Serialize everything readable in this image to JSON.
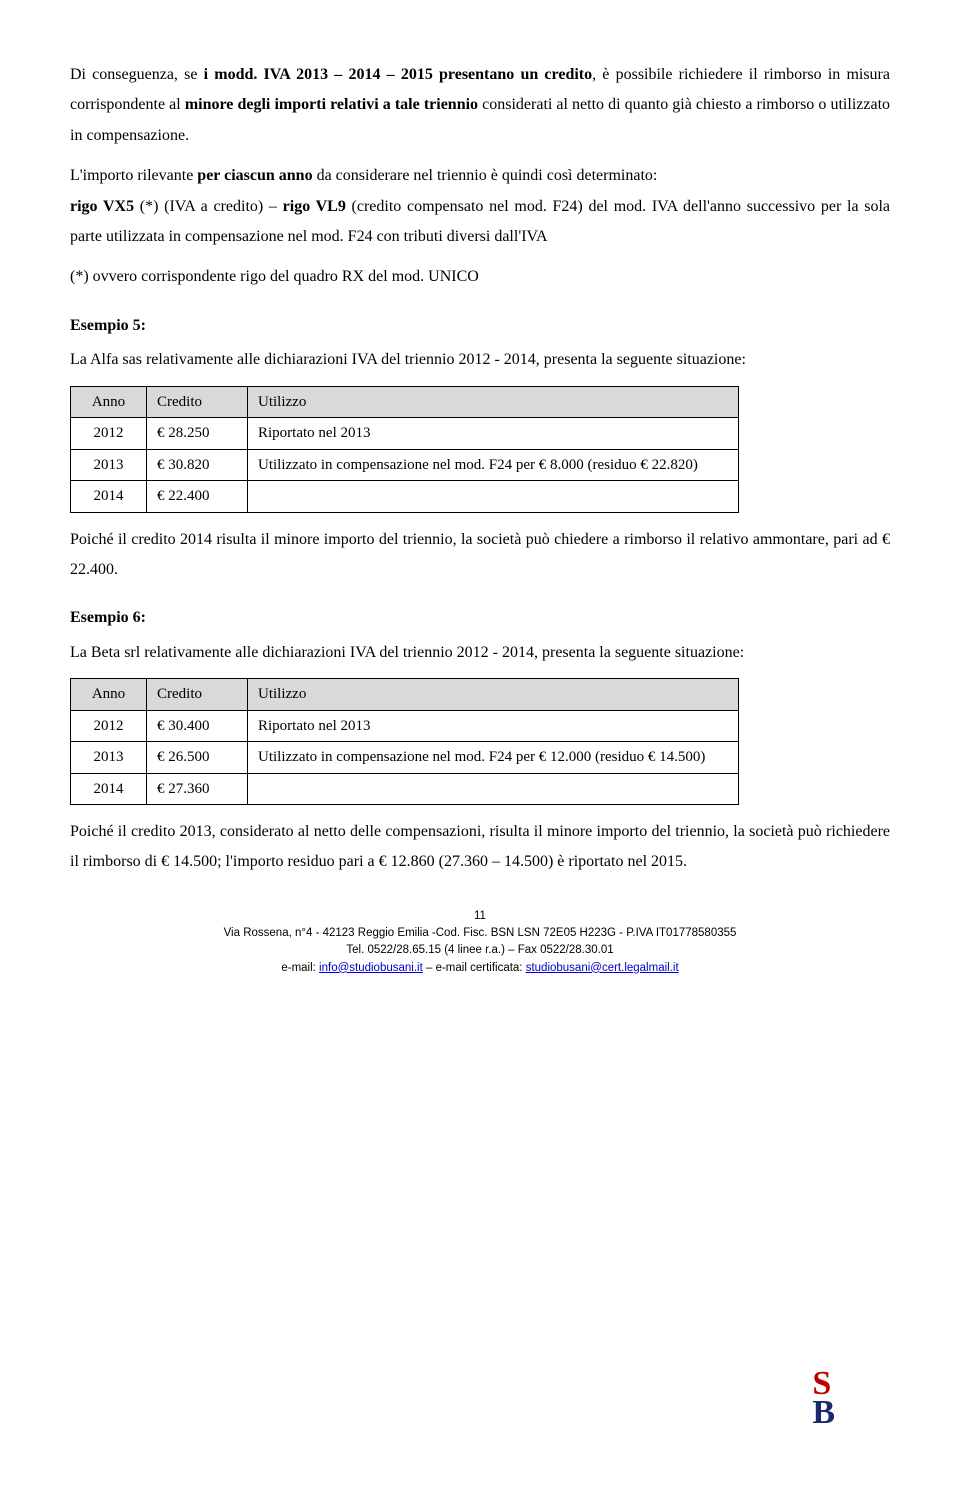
{
  "para1_pre": "Di conseguenza, se ",
  "para1_bold": "i modd. IVA 2013 – 2014 – 2015 presentano un credito",
  "para1_mid1": ", è possibile richiedere il rimborso in misura corrispondente al ",
  "para1_bold2": "minore degli importi relativi a tale triennio",
  "para1_mid2": " considerati al netto di quanto già chiesto a rimborso o utilizzato in compensazione.",
  "para2_pre": "L'importo rilevante ",
  "para2_bold1": "per ciascun anno",
  "para2_mid1": " da considerare nel triennio è quindi così determinato:",
  "para3_bold1": "rigo VX5",
  "para3_mid1": " (*) (IVA a credito) – ",
  "para3_bold2": "rigo VL9",
  "para3_mid2": " (credito compensato nel mod. F24) del mod. IVA dell'anno successivo per la sola parte utilizzata in compensazione nel mod. F24 con tributi diversi dall'IVA",
  "para4": "(*) ovvero corrispondente rigo del quadro RX del mod. UNICO",
  "ex5_title": "Esempio 5:",
  "ex5_intro": "La Alfa sas relativamente alle dichiarazioni IVA del triennio 2012 - 2014, presenta la seguente situazione:",
  "table": {
    "headers": {
      "anno": "Anno",
      "credito": "Credito",
      "utilizzo": "Utilizzo"
    }
  },
  "ex5_rows": [
    {
      "anno": "2012",
      "credito": "€ 28.250",
      "utilizzo": "Riportato nel 2013"
    },
    {
      "anno": "2013",
      "credito": "€ 30.820",
      "utilizzo": "Utilizzato in compensazione nel mod. F24 per € 8.000 (residuo € 22.820)"
    },
    {
      "anno": "2014",
      "credito": "€ 22.400",
      "utilizzo": ""
    }
  ],
  "ex5_after": "Poiché il credito 2014 risulta il minore importo del triennio, la società può chiedere a rimborso il relativo ammontare, pari ad € 22.400.",
  "ex6_title": "Esempio 6:",
  "ex6_intro": "La Beta srl relativamente alle dichiarazioni IVA del triennio 2012 - 2014, presenta la seguente situazione:",
  "ex6_rows": [
    {
      "anno": "2012",
      "credito": "€ 30.400",
      "utilizzo": "Riportato nel 2013"
    },
    {
      "anno": "2013",
      "credito": "€ 26.500",
      "utilizzo": "Utilizzato in compensazione nel mod. F24 per € 12.000 (residuo € 14.500)"
    },
    {
      "anno": "2014",
      "credito": "€ 27.360",
      "utilizzo": ""
    }
  ],
  "ex6_after": "Poiché il credito 2013, considerato al netto delle compensazioni, risulta il minore importo del triennio, la società può richiedere il rimborso di € 14.500; l'importo residuo pari a € 12.860 (27.360 – 14.500) è riportato nel 2015.",
  "footer": {
    "page": "11",
    "line1": "Via Rossena, n°4 - 42123 Reggio Emilia -Cod. Fisc. BSN LSN 72E05 H223G - P.IVA IT01778580355",
    "line2": "Tel. 0522/28.65.15 (4 linee r.a.) – Fax 0522/28.30.01",
    "line3_pre": "e-mail: ",
    "line3_link1": "info@studiobusani.it",
    "line3_mid": " – e-mail certificata: ",
    "line3_link2": "studiobusani@cert.legalmail.it"
  },
  "logo": {
    "s": "S",
    "b": "B"
  }
}
